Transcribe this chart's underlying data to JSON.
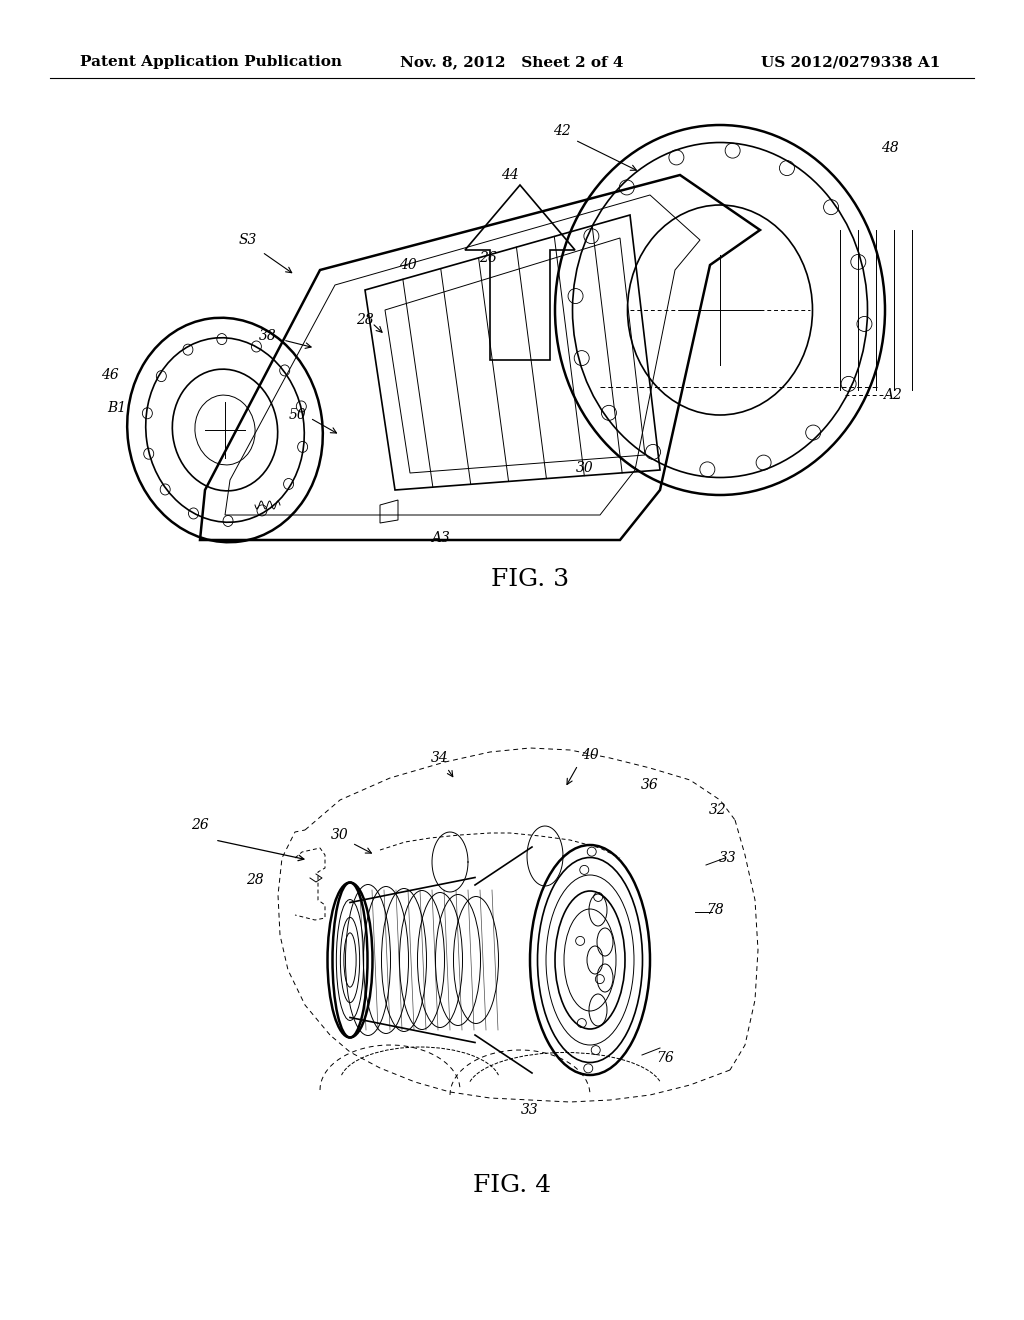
{
  "background_color": "#ffffff",
  "header_left": "Patent Application Publication",
  "header_middle": "Nov. 8, 2012   Sheet 2 of 4",
  "header_right": "US 2012/0279338 A1",
  "fig3_caption": "FIG. 3",
  "fig4_caption": "FIG. 4",
  "header_fontsize": 11,
  "caption_fontsize": 18,
  "label_fontsize": 10
}
